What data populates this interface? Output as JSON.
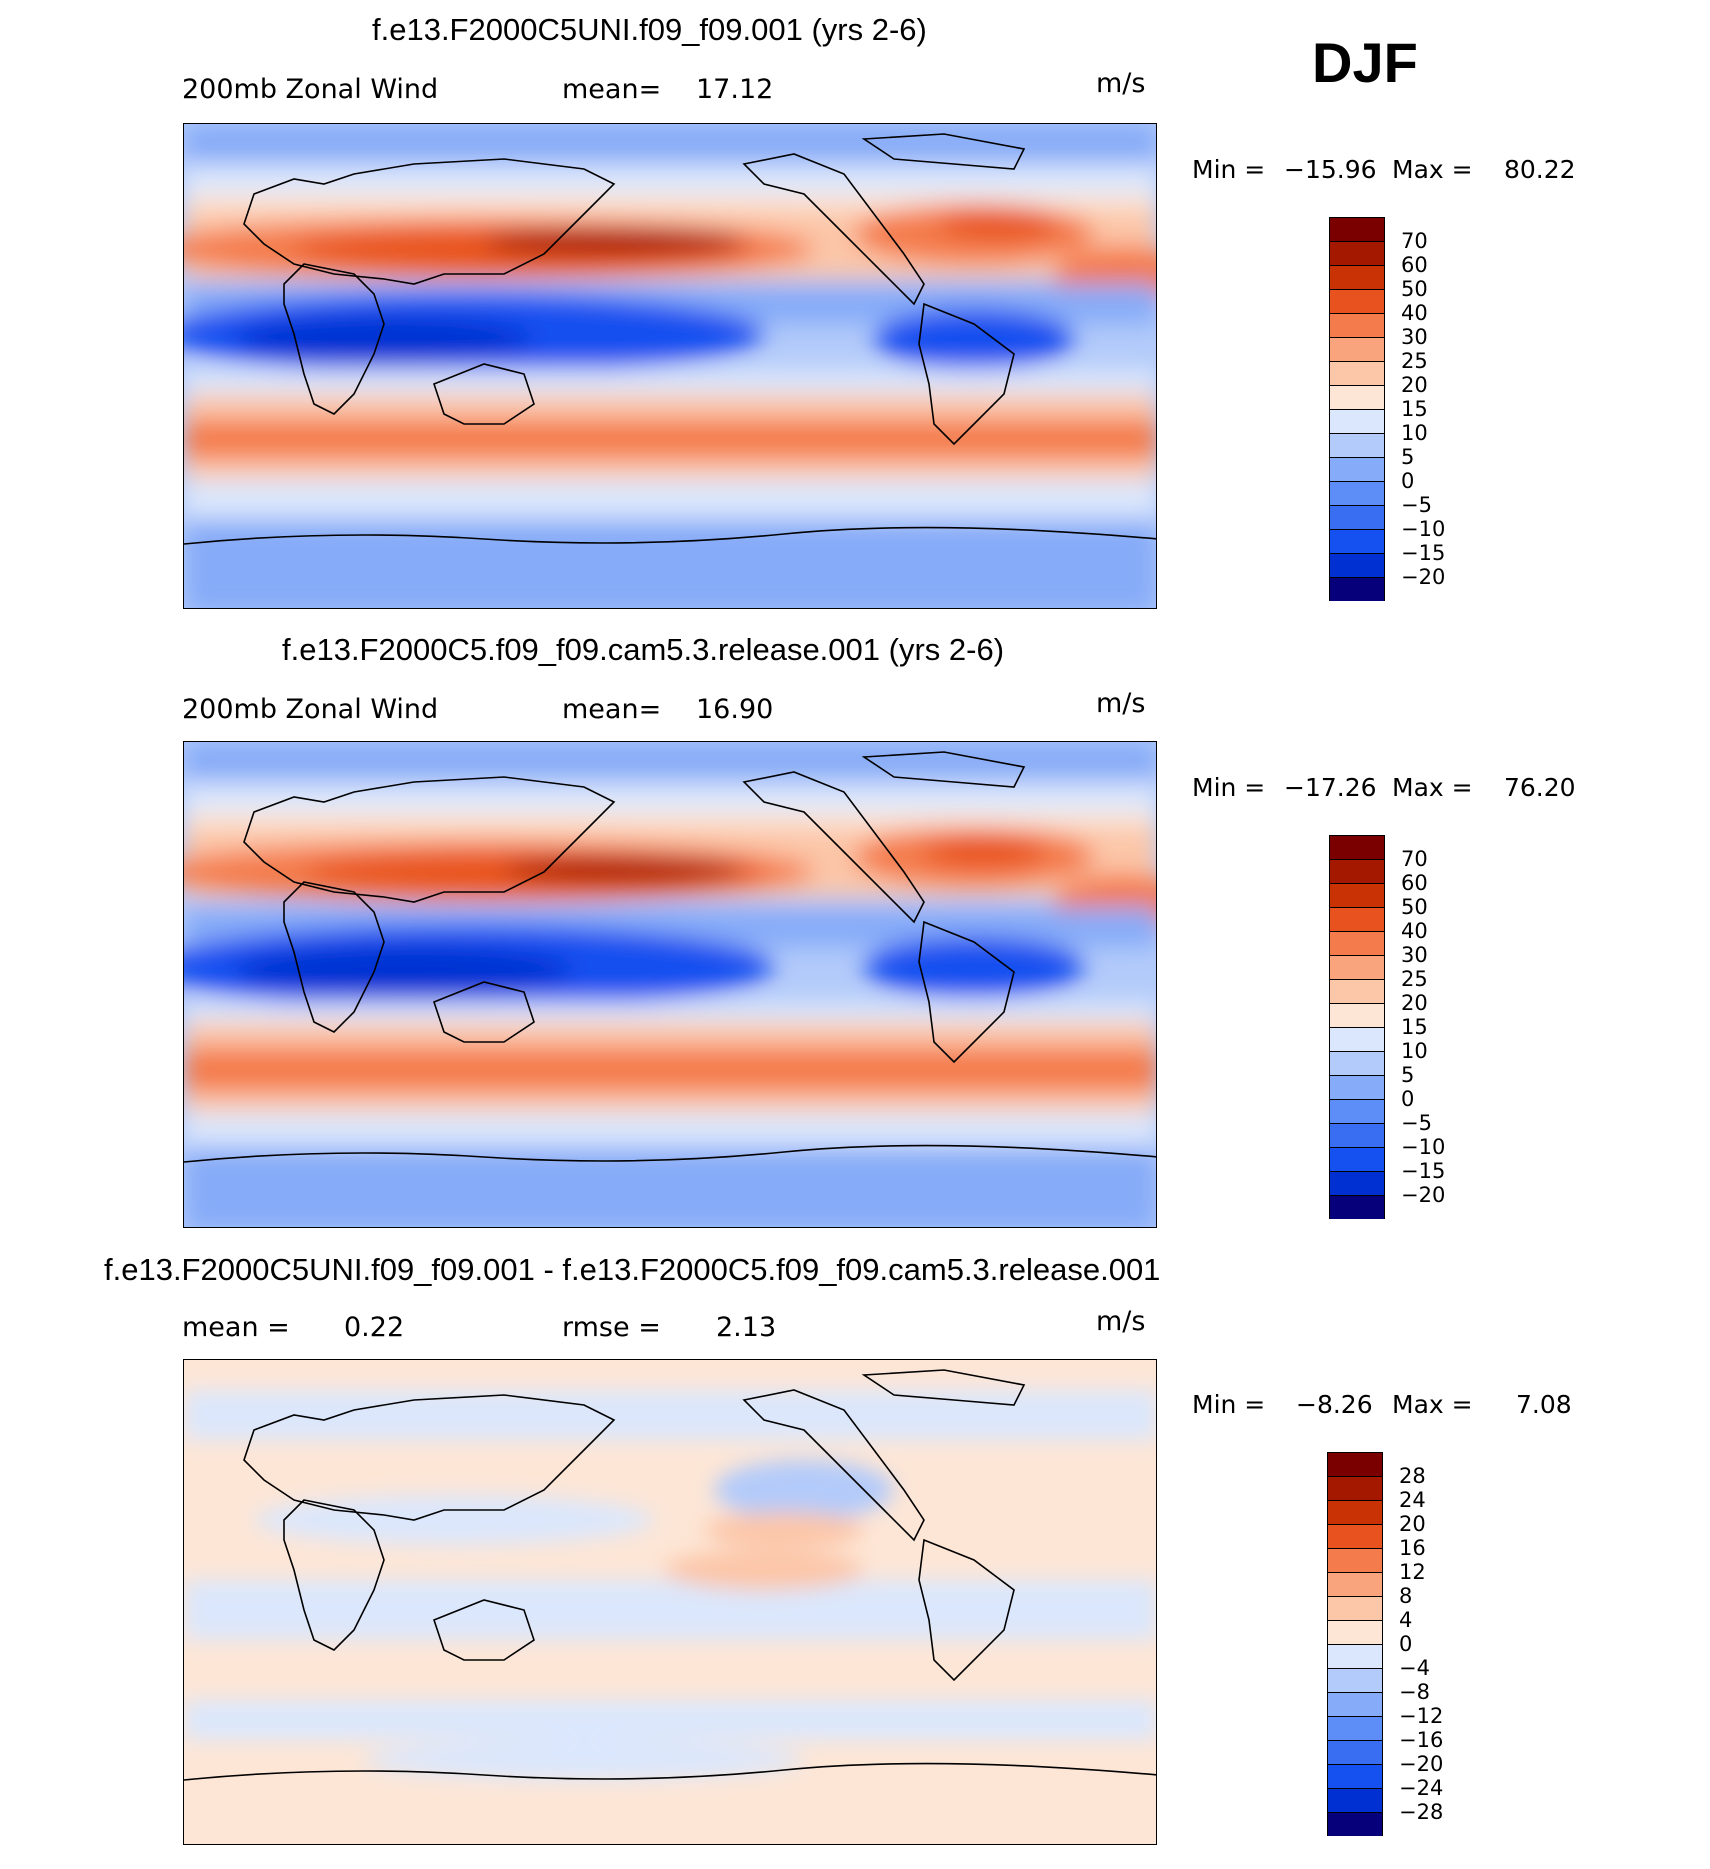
{
  "season": "DJF",
  "colors": {
    "scale": [
      "#06007a",
      "#0016a8",
      "#0030d2",
      "#1550f0",
      "#3a6ef2",
      "#5d8df6",
      "#86abf8",
      "#b3cbfa",
      "#dbe7fc",
      "#fde6d6",
      "#fcc6a8",
      "#f9a47c",
      "#f47c4c",
      "#e8521e",
      "#c83205",
      "#a51800",
      "#7a0000"
    ]
  },
  "panels": [
    {
      "title": "f.e13.F2000C5UNI.f09_f09.001 (yrs 2-6)",
      "left_label": "200mb Zonal Wind",
      "mid_label": "mean=",
      "mid_value": "17.12",
      "units": "m/s",
      "min_label": "Min =",
      "min_value": "−15.96",
      "max_label": "Max =",
      "max_value": "80.22",
      "colorbar_labels": [
        "70",
        "60",
        "50",
        "40",
        "30",
        "25",
        "20",
        "15",
        "10",
        "5",
        "0",
        "−5",
        "−10",
        "−15",
        "−20"
      ]
    },
    {
      "title": "f.e13.F2000C5.f09_f09.cam5.3.release.001 (yrs 2-6)",
      "left_label": "200mb Zonal Wind",
      "mid_label": "mean=",
      "mid_value": "16.90",
      "units": "m/s",
      "min_label": "Min =",
      "min_value": "−17.26",
      "max_label": "Max =",
      "max_value": "76.20",
      "colorbar_labels": [
        "70",
        "60",
        "50",
        "40",
        "30",
        "25",
        "20",
        "15",
        "10",
        "5",
        "0",
        "−5",
        "−10",
        "−15",
        "−20"
      ]
    },
    {
      "title": "f.e13.F2000C5UNI.f09_f09.001 - f.e13.F2000C5.f09_f09.cam5.3.release.001",
      "left_label": "mean =",
      "left_value": "0.22",
      "mid_label": "rmse =",
      "mid_value": "2.13",
      "units": "m/s",
      "min_label": "Min =",
      "min_value": "−8.26",
      "max_label": "Max =",
      "max_value": "7.08",
      "colorbar_labels": [
        "28",
        "24",
        "20",
        "16",
        "12",
        "8",
        "4",
        "0",
        "−4",
        "−8",
        "−12",
        "−16",
        "−20",
        "−24",
        "−28"
      ]
    }
  ]
}
